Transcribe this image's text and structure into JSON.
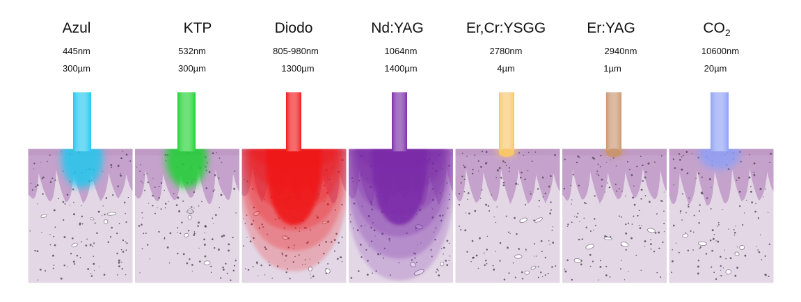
{
  "lasers": [
    {
      "name": "Azul",
      "wavelength": "445nm",
      "depth": "300µm",
      "beam_color": "#22c7ee",
      "depth_fraction": 0.3
    },
    {
      "name": "KTP",
      "wavelength": "532nm",
      "depth": "300µm",
      "beam_color": "#1fd130",
      "depth_fraction": 0.3
    },
    {
      "name": "Diodo",
      "wavelength": "805-980nm",
      "depth": "1300µm",
      "beam_color": "#f01818",
      "depth_fraction": 0.93
    },
    {
      "name": "Nd:YAG",
      "wavelength": "1064nm",
      "depth": "1400µm",
      "beam_color": "#7a2aa8",
      "depth_fraction": 1.0
    },
    {
      "name": "Er,Cr:YSGG",
      "wavelength": "2780nm",
      "depth": "4µm",
      "beam_color": "#f7c66a",
      "depth_fraction": 0.03
    },
    {
      "name": "Er:YAG",
      "wavelength": "2940nm",
      "depth": "1µm",
      "beam_color": "#c9956e",
      "depth_fraction": 0.02
    },
    {
      "name": "CO",
      "name_subscript": "2",
      "wavelength": "10600nm",
      "depth": "20µm",
      "beam_color": "#8fa0f5",
      "depth_fraction": 0.16
    }
  ],
  "colors": {
    "epithelium": "#c5a2cb",
    "epithelium_dark": "#b48cbb",
    "connective": "#e3d7e6",
    "dots": "#4a3a4d",
    "background": "#ffffff"
  }
}
